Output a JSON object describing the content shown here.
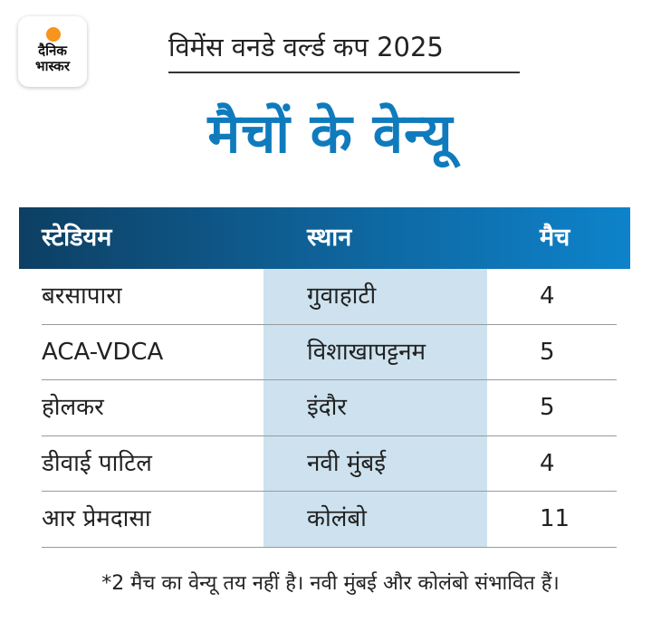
{
  "brand": {
    "line1": "दैनिक",
    "line2": "भास्कर",
    "accent_color": "#f7941d"
  },
  "headline": "विमेंस वनडे वर्ल्ड कप 2025",
  "title": "मैचों के वेन्यू",
  "colors": {
    "title": "#0f7bbd",
    "header_start": "#0d3f63",
    "header_end": "#0d83cb",
    "band": "#cde2ee"
  },
  "table": {
    "headers": [
      "स्टेडियम",
      "स्थान",
      "मैच"
    ],
    "rows": [
      [
        "बरसापारा",
        "गुवाहाटी",
        "4"
      ],
      [
        "ACA-VDCA",
        "विशाखापट्टनम",
        "5"
      ],
      [
        "होलकर",
        "इंदौर",
        "5"
      ],
      [
        "डीवाई पाटिल",
        "नवी मुंबई",
        "4"
      ],
      [
        "आर प्रेमदासा",
        "कोलंबो",
        "11"
      ]
    ]
  },
  "footnote": "*2 मैच का वेन्यू तय नहीं है। नवी मुंबई और कोलंबो संभावित हैं।"
}
